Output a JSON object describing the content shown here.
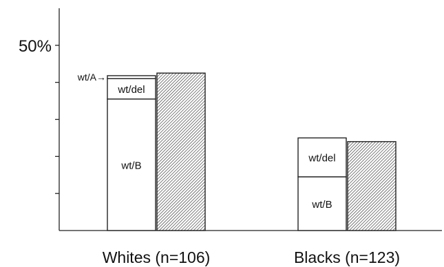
{
  "chart_data": {
    "type": "bar",
    "title": "",
    "xlabel": "",
    "ylabel": "",
    "ylim": [
      0,
      60
    ],
    "y_tick_values": [
      10,
      20,
      30,
      40,
      50
    ],
    "y_tick_labels": [
      "",
      "",
      "",
      "",
      "50%"
    ],
    "grid": false,
    "legend": "none",
    "categories": [
      "Whites (n=106)",
      "Blacks (n=123)"
    ],
    "stacked_series": [
      {
        "name": "wt/B",
        "values": [
          35.5,
          14.5
        ]
      },
      {
        "name": "wt/del",
        "values": [
          5.5,
          10.5
        ]
      },
      {
        "name": "wt/A",
        "values": [
          0.8,
          0
        ]
      }
    ],
    "hatched_series": {
      "name": "",
      "values": [
        42.5,
        24
      ]
    },
    "annotations": [
      {
        "text": "wt/A→",
        "category": "Whites (n=106)",
        "points_to": "wt/A"
      }
    ],
    "colors": {
      "axis": "#222222",
      "bar_fill": "#ffffff",
      "bar_stroke": "#222222",
      "hatch": "#444444"
    }
  }
}
